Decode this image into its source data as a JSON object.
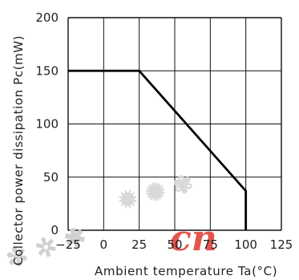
{
  "chart_data": {
    "type": "line",
    "xlabel": "Ambient temperature Ta(°C)",
    "ylabel": "Collector power dissipation Pc(mW)",
    "xlim": [
      -25,
      125
    ],
    "ylim": [
      0,
      200
    ],
    "xticks": [
      "−25",
      "0",
      "25",
      "50",
      "75",
      "100",
      "125"
    ],
    "yticks": [
      "0",
      "50",
      "100",
      "150",
      "200"
    ],
    "grid": true,
    "series": [
      {
        "x": [
          -25,
          25,
          100,
          100
        ],
        "y": [
          150,
          150,
          37,
          0
        ],
        "color": "#000000"
      }
    ]
  },
  "watermark": {
    "text": "cn",
    "color": "#e0382d",
    "glyph_color": "#d0d0d0"
  }
}
